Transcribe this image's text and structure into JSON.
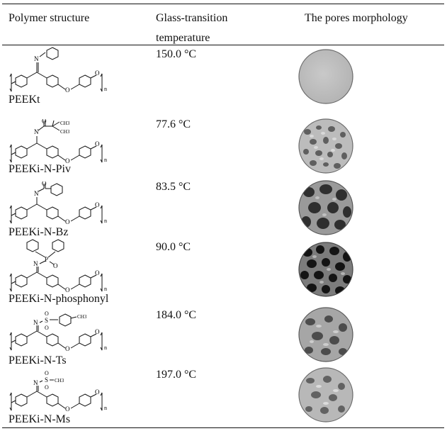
{
  "table": {
    "headers": {
      "structure": "Polymer structure",
      "tg_line1": "Glass-transition",
      "tg_line2": "temperature",
      "morphology": "The pores morphology"
    },
    "rows": [
      {
        "name": "PEEKt",
        "tg": "150.0 °C",
        "morphology": "smooth-dense"
      },
      {
        "name": "PEEKi-N-Piv",
        "tg": "77.6 °C",
        "morphology": "fine-porous"
      },
      {
        "name": "PEEKi-N-Bz",
        "tg": "83.5 °C",
        "morphology": "large-porous"
      },
      {
        "name": "PEEKi-N-phosphonyl",
        "tg": "90.0 °C",
        "morphology": "large-dark-porous"
      },
      {
        "name": "PEEKi-N-Ts",
        "tg": "184.0 °C",
        "morphology": "rough-porous"
      },
      {
        "name": "PEEKi-N-Ms",
        "tg": "197.0 °C",
        "morphology": "rough-porous"
      }
    ],
    "atom_labels": {
      "N": "N",
      "O": "O",
      "S": "S",
      "P": "P",
      "n": "n",
      "CH3": "CH3"
    }
  }
}
